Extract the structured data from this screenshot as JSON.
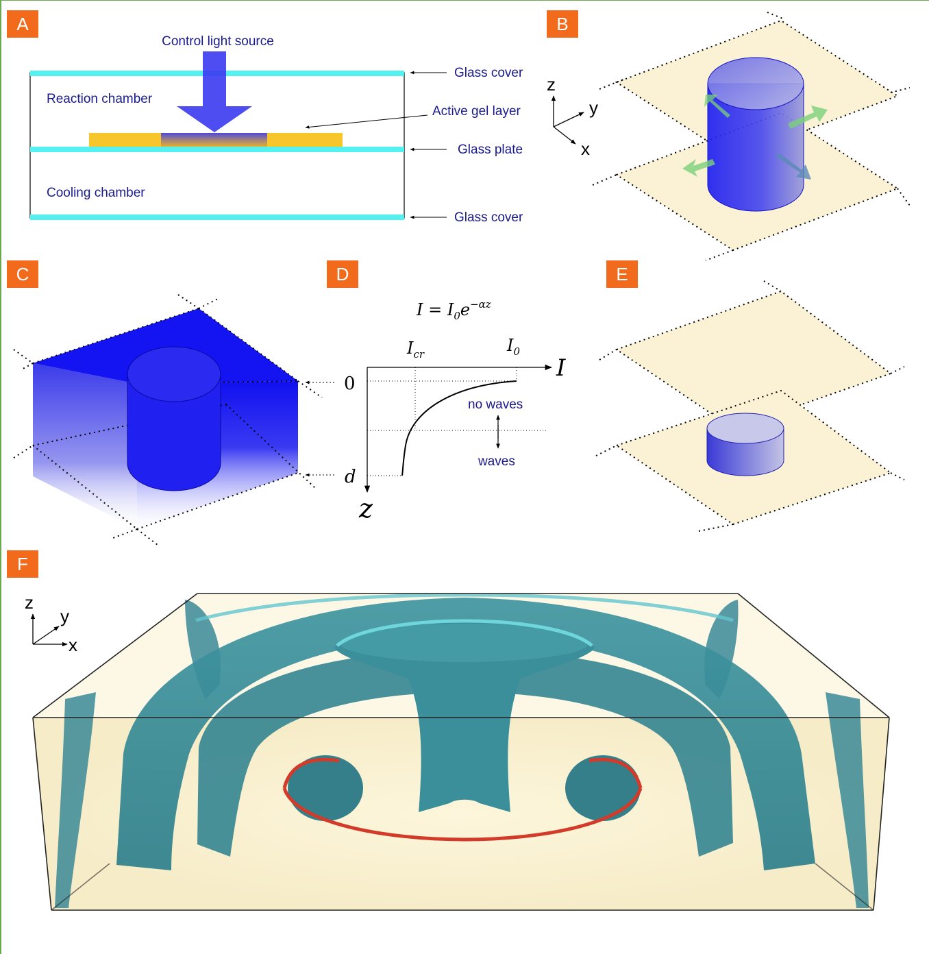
{
  "panels": {
    "a": {
      "label": "A",
      "control_light_source": "Control light source",
      "reaction_chamber": "Reaction chamber",
      "cooling_chamber": "Cooling chamber",
      "glass_cover_top": "Glass cover",
      "active_gel_layer": "Active gel layer",
      "glass_plate": "Glass plate",
      "glass_cover_bottom": "Glass cover"
    },
    "b": {
      "label": "B",
      "axis_z": "z",
      "axis_y": "y",
      "axis_x": "x"
    },
    "c": {
      "label": "C"
    },
    "d": {
      "label": "D",
      "equation_lhs": "I = I",
      "equation_sub": "0",
      "equation_e": "e",
      "equation_exp": "−αz",
      "i_cr_main": "I",
      "i_cr_sub": "cr",
      "i0_main": "I",
      "i0_sub": "0",
      "axis_i": "I",
      "axis_z": "z",
      "zero": "0",
      "depth": "d",
      "no_waves": "no waves",
      "waves": "waves"
    },
    "e": {
      "label": "E"
    },
    "f": {
      "label": "F",
      "axis_z": "z",
      "axis_y": "y",
      "axis_x": "x"
    }
  },
  "colors": {
    "label_bg": "#f26b1d",
    "glass": "#55f0f0",
    "gel": "#f7c62a",
    "light": "#3a3af0",
    "wave": "#3a8a96",
    "plane": "#fbf2d6",
    "ring": "#d23a2a"
  }
}
